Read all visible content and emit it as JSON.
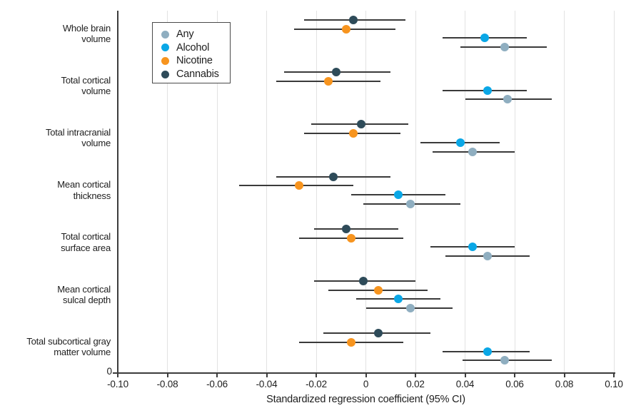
{
  "figure": {
    "origin_label": "0"
  },
  "legend": {
    "items": [
      {
        "label": "Any",
        "color": "#8FAEC0"
      },
      {
        "label": "Alcohol",
        "color": "#0AA7E6"
      },
      {
        "label": "Nicotine",
        "color": "#F7941E"
      },
      {
        "label": "Cannabis",
        "color": "#2E4B59"
      }
    ]
  },
  "chart_data": {
    "type": "scatter",
    "subtype": "forest-plot-with-95ci-error-bars",
    "title": "",
    "xlabel": "Standardized regression coefficient (95% CI)",
    "ylabel": "",
    "xlim": [
      -0.1,
      0.1
    ],
    "xticks": [
      -0.1,
      -0.08,
      -0.06,
      -0.04,
      -0.02,
      0,
      0.02,
      0.04,
      0.06,
      0.08,
      0.1
    ],
    "xtick_labels": [
      "-0.10",
      "-0.08",
      "-0.06",
      "-0.04",
      "-0.02",
      "0",
      "0.02",
      "0.04",
      "0.06",
      "0.08",
      "0.10"
    ],
    "grid": "vertical-gridlines-on",
    "legend_position": "top-left-inside",
    "categories": [
      [
        "Whole brain",
        "volume"
      ],
      [
        "Total cortical",
        "volume"
      ],
      [
        "Total intracranial",
        "volume"
      ],
      [
        "Mean cortical",
        "thickness"
      ],
      [
        "Total cortical",
        "surface area"
      ],
      [
        "Mean cortical",
        "sulcal depth"
      ],
      [
        "Total subcortical gray",
        "matter volume"
      ]
    ],
    "row_order_top_to_bottom": [
      "Cannabis",
      "Nicotine",
      "Alcohol",
      "Any"
    ],
    "series": [
      {
        "name": "Any",
        "color": "#8FAEC0",
        "values": [
          0.056,
          0.057,
          0.043,
          0.018,
          0.049,
          0.018,
          0.056
        ],
        "ci_low": [
          0.038,
          0.04,
          0.027,
          -0.001,
          0.032,
          0.0,
          0.039
        ],
        "ci_high": [
          0.073,
          0.075,
          0.06,
          0.038,
          0.066,
          0.035,
          0.075
        ]
      },
      {
        "name": "Alcohol",
        "color": "#0AA7E6",
        "values": [
          0.048,
          0.049,
          0.038,
          0.013,
          0.043,
          0.013,
          0.049
        ],
        "ci_low": [
          0.031,
          0.031,
          0.022,
          -0.006,
          0.026,
          -0.004,
          0.031
        ],
        "ci_high": [
          0.065,
          0.065,
          0.054,
          0.032,
          0.06,
          0.03,
          0.066
        ]
      },
      {
        "name": "Nicotine",
        "color": "#F7941E",
        "values": [
          -0.008,
          -0.015,
          -0.005,
          -0.027,
          -0.006,
          0.005,
          -0.006
        ],
        "ci_low": [
          -0.029,
          -0.036,
          -0.025,
          -0.051,
          -0.027,
          -0.015,
          -0.027
        ],
        "ci_high": [
          0.012,
          0.006,
          0.014,
          -0.005,
          0.015,
          0.025,
          0.015
        ]
      },
      {
        "name": "Cannabis",
        "color": "#2E4B59",
        "values": [
          -0.005,
          -0.012,
          -0.002,
          -0.013,
          -0.008,
          -0.001,
          0.005
        ],
        "ci_low": [
          -0.025,
          -0.033,
          -0.022,
          -0.036,
          -0.021,
          -0.021,
          -0.017
        ],
        "ci_high": [
          0.016,
          0.01,
          0.017,
          0.01,
          0.013,
          0.02,
          0.026
        ]
      }
    ]
  }
}
